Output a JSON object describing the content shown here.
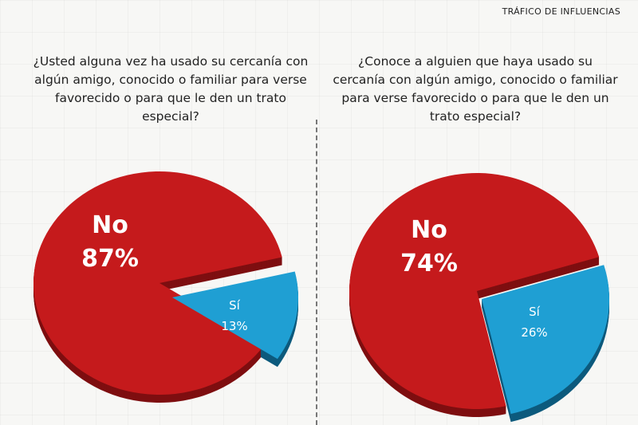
{
  "header": {
    "title": "TRÁFICO DE INFLUENCIAS"
  },
  "charts": {
    "left": {
      "question": "¿Usted alguna vez ha usado su cercanía con algún amigo, conocido o familiar para verse favorecido o para que le den un trato especial?"
    },
    "right": {
      "question": "¿Conoce a alguien que haya usado su cercanía con algún amigo, conocido o familiar para verse favorecido o para que le den un trato especial?"
    }
  },
  "colors": {
    "no": "#c51a1c",
    "no_side": "#7e0e10",
    "si": "#1f9fd3",
    "si_side": "#0d5a7d"
  },
  "chart_data": [
    {
      "type": "pie",
      "title": "¿Usted alguna vez ha usado su cercanía con algún amigo, conocido o familiar para verse favorecido o para que le den un trato especial?",
      "slices": [
        {
          "label": "No",
          "value": 87,
          "display": "87%"
        },
        {
          "label": "Sí",
          "value": 13,
          "display": "13%"
        }
      ]
    },
    {
      "type": "pie",
      "title": "¿Conoce a alguien que haya usado su cercanía con algún amigo, conocido o familiar para verse favorecido o para que le den un trato especial?",
      "slices": [
        {
          "label": "No",
          "value": 74,
          "display": "74%"
        },
        {
          "label": "Sí",
          "value": 26,
          "display": "26%"
        }
      ]
    }
  ]
}
